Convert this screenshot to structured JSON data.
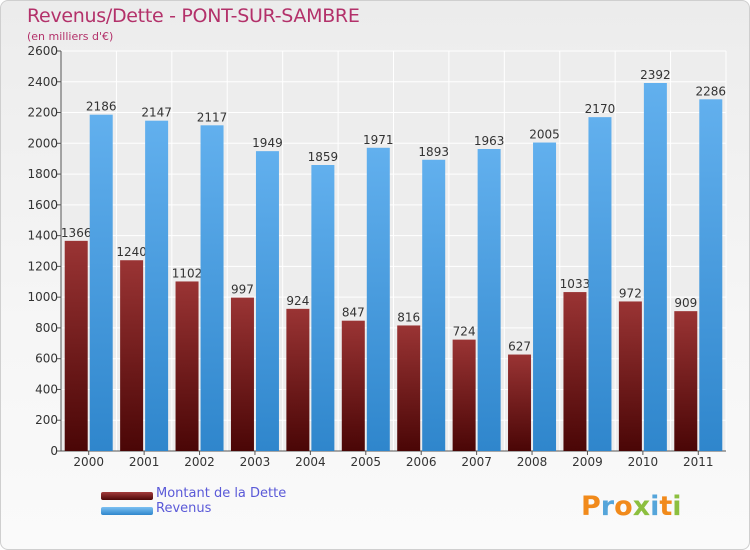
{
  "chart_data": {
    "type": "bar",
    "title": "Revenus/Dette - PONT-SUR-SAMBRE",
    "subtitle": "(en milliers d'€)",
    "categories": [
      "2000",
      "2001",
      "2002",
      "2003",
      "2004",
      "2005",
      "2006",
      "2007",
      "2008",
      "2009",
      "2010",
      "2011"
    ],
    "series": [
      {
        "name": "Montant de la Dette",
        "values": [
          1366,
          1240,
          1102,
          997,
          924,
          847,
          816,
          724,
          627,
          1033,
          972,
          909
        ],
        "color": "#7a1f1f"
      },
      {
        "name": "Revenus",
        "values": [
          2186,
          2147,
          2117,
          1949,
          1859,
          1971,
          1893,
          1963,
          2005,
          2170,
          2392,
          2286
        ],
        "color": "#4ea3e6"
      }
    ],
    "ylim": [
      0,
      2600
    ],
    "yticks": [
      0,
      200,
      400,
      600,
      800,
      1000,
      1200,
      1400,
      1600,
      1800,
      2000,
      2200,
      2400,
      2600
    ],
    "grid": true,
    "legend": "bottom-left"
  },
  "logo": {
    "text": "Proxiti",
    "colors": [
      "#f18a1b",
      "#55a5da",
      "#f18a1b",
      "#8cbf3f",
      "#55a5da",
      "#f18a1b",
      "#8cbf3f"
    ]
  }
}
